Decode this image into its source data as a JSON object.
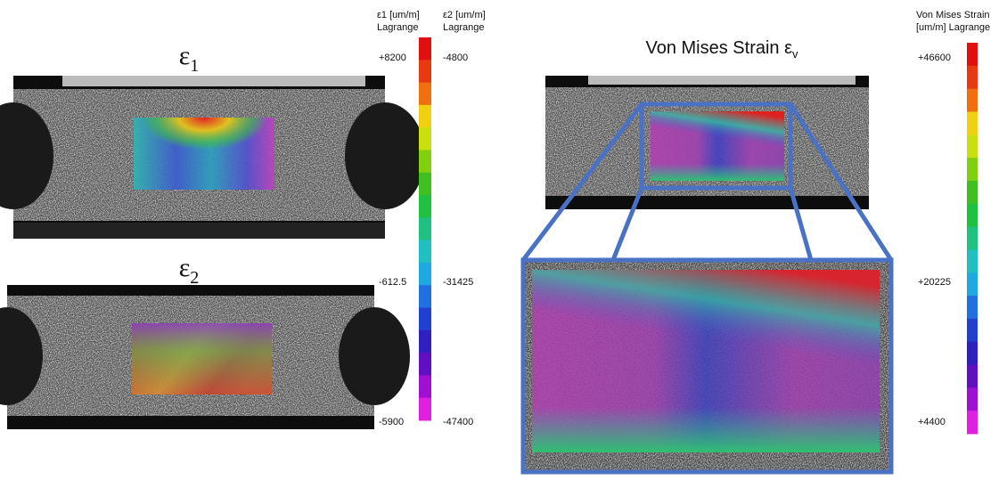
{
  "left": {
    "e1_title": {
      "symbol": "ε",
      "subscript": "1"
    },
    "e2_title": {
      "symbol": "ε",
      "subscript": "2"
    },
    "colorbar": {
      "e1_header": [
        "ε1 [um/m]",
        "Lagrange"
      ],
      "e2_header": [
        "ε2 [um/m]",
        "Lagrange"
      ],
      "e1_labels": [
        "+8200",
        "-612.5",
        "-5900"
      ],
      "e2_labels": [
        "-4800",
        "-31425",
        "-47400"
      ]
    }
  },
  "right": {
    "title": {
      "text": "Von Mises Strain ε",
      "subscript": "v"
    },
    "colorbar": {
      "header": [
        "Von Mises Strain",
        "[um/m] Lagrange"
      ],
      "labels": [
        "+46600",
        "+20225",
        "+4400"
      ]
    }
  }
}
